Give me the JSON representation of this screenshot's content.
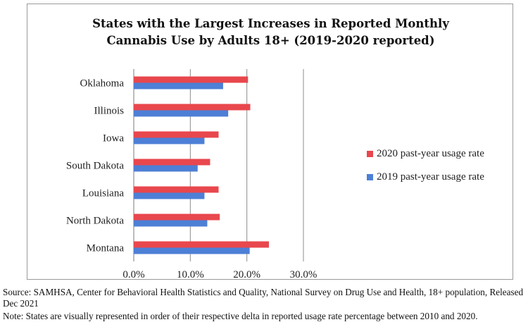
{
  "chart_data": {
    "type": "bar",
    "orientation": "horizontal",
    "title_lines": [
      "States with the Largest Increases in Reported Monthly",
      "Cannabis Use by Adults 18+ (2019-2020 reported)"
    ],
    "categories": [
      "Oklahoma",
      "Illinois",
      "Iowa",
      "South Dakota",
      "Louisiana",
      "North Dakota",
      "Montana"
    ],
    "series": [
      {
        "name": "2020 past-year usage rate",
        "color": "#e8474d",
        "values": [
          20.2,
          20.6,
          15.0,
          13.5,
          15.0,
          15.2,
          23.9
        ]
      },
      {
        "name": "2019 past-year usage rate",
        "color": "#4d7fd6",
        "values": [
          15.8,
          16.7,
          12.5,
          11.3,
          12.5,
          13.0,
          20.5
        ]
      }
    ],
    "xlim": [
      0,
      30
    ],
    "x_ticks": [
      "0.0%",
      "10.0%",
      "20.0%",
      "30.0%"
    ],
    "grid": "vertical",
    "legend_position": "right"
  },
  "footer": {
    "source": "Source: SAMHSA, Center for Behavioral Health Statistics and Quality, National Survey on Drug Use and Health, 18+ population, Released Dec 2021",
    "note": "Note: States are visually represented in order of their respective delta in reported usage rate percentage between 2010 and 2020."
  }
}
